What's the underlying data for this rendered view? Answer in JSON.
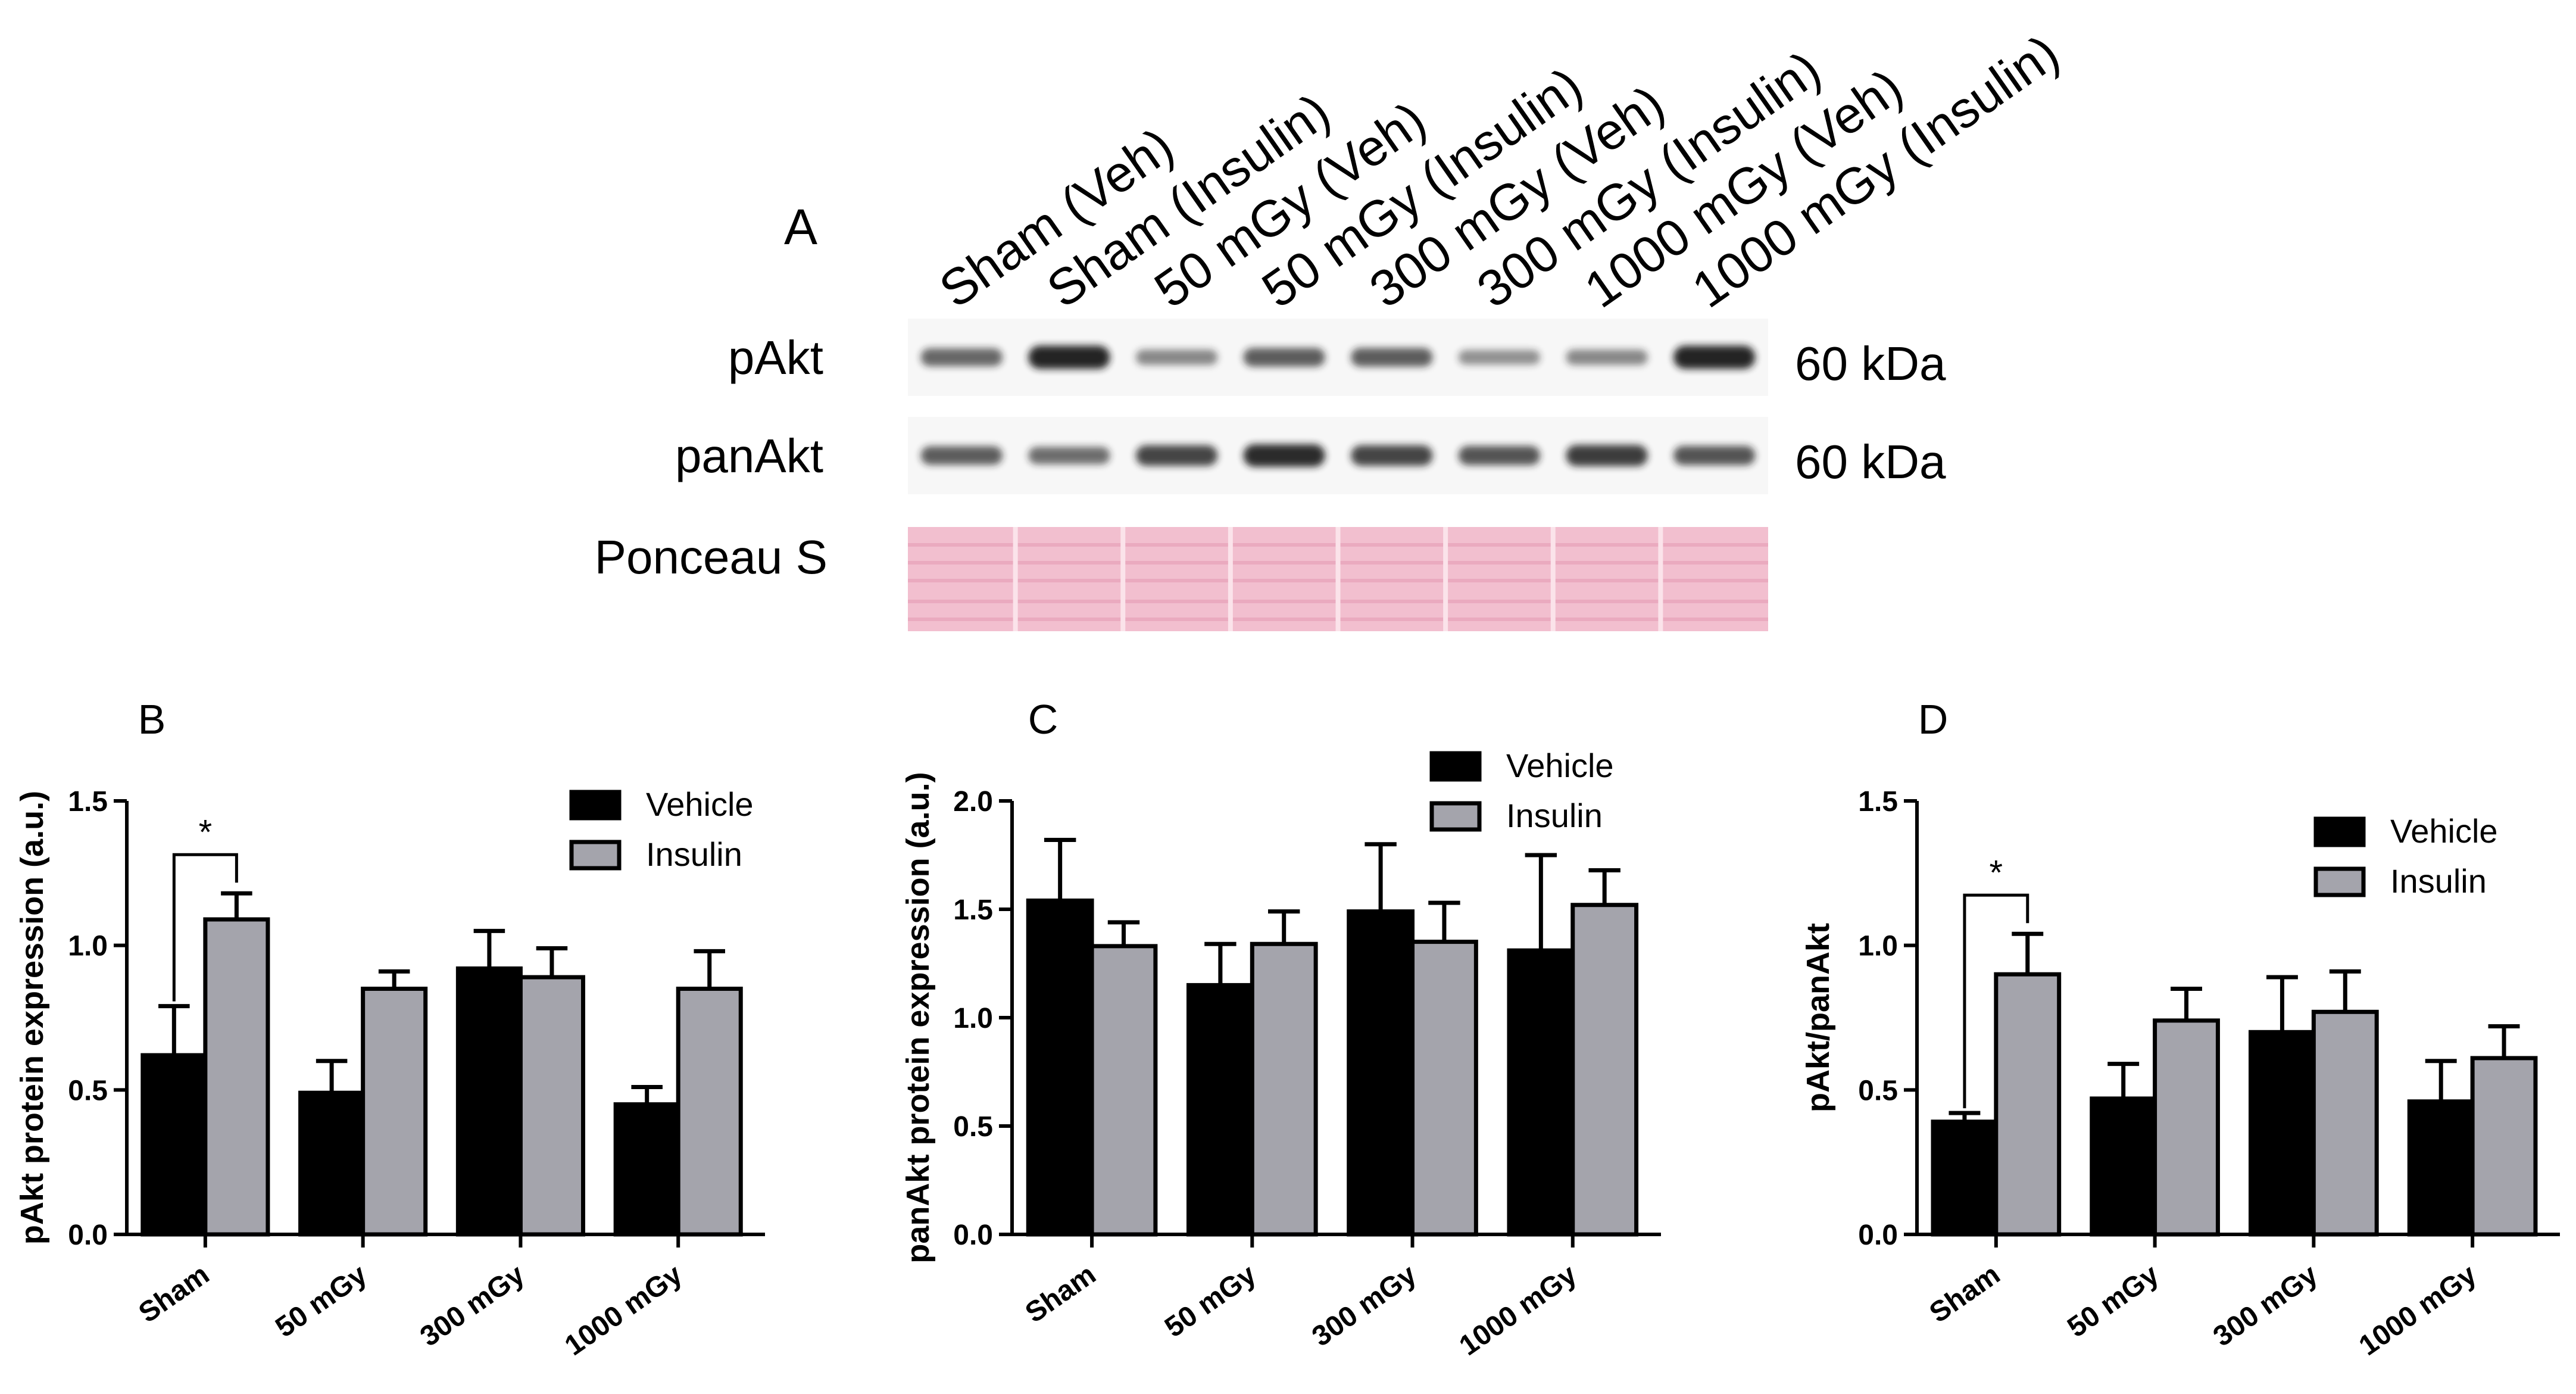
{
  "blot": {
    "panel_letter": "A",
    "lanes": [
      "Sham (Veh)",
      "Sham (Insulin)",
      "50 mGy (Veh)",
      "50 mGy (Insulin)",
      "300 mGy (Veh)",
      "300 mGy (Insulin)",
      "1000 mGy (Veh)",
      "1000 mGy (Insulin)"
    ],
    "rows": [
      {
        "label": "pAkt",
        "size": "60 kDa",
        "band_intensity": [
          0.55,
          0.95,
          0.35,
          0.6,
          0.6,
          0.3,
          0.35,
          0.95
        ]
      },
      {
        "label": "panAkt",
        "size": "60 kDa",
        "band_intensity": [
          0.6,
          0.5,
          0.75,
          0.9,
          0.75,
          0.65,
          0.8,
          0.65
        ]
      },
      {
        "label": "Ponceau S",
        "size": ""
      }
    ],
    "colors": {
      "band": "#1a1a1a",
      "ponceau": "#f2bfcf",
      "ponceau_line": "#e397b0"
    }
  },
  "colors": {
    "vehicle": "#000000",
    "insulin": "#a4a4ac"
  },
  "chart_data": [
    {
      "panel_letter": "B",
      "type": "bar",
      "categories": [
        "Sham",
        "50 mGy",
        "300 mGy",
        "1000 mGy"
      ],
      "series": [
        {
          "name": "Vehicle",
          "values": [
            0.62,
            0.49,
            0.92,
            0.45
          ],
          "errors": [
            0.17,
            0.11,
            0.13,
            0.06
          ]
        },
        {
          "name": "Insulin",
          "values": [
            1.09,
            0.85,
            0.89,
            0.85
          ],
          "errors": [
            0.09,
            0.06,
            0.1,
            0.13
          ]
        }
      ],
      "ylabel": "pAkt protein expression (a.u.)",
      "ylim": [
        0,
        1.5
      ],
      "yticks": [
        0.0,
        0.5,
        1.0,
        1.5
      ],
      "ytick_labels": [
        "0.0",
        "0.5",
        "1.0",
        "1.5"
      ],
      "legend_position": "top-right",
      "grid": false,
      "annotations": [
        {
          "text": "*",
          "between": [
            "Sham Vehicle",
            "Sham Insulin"
          ]
        }
      ]
    },
    {
      "panel_letter": "C",
      "type": "bar",
      "categories": [
        "Sham",
        "50 mGy",
        "300 mGy",
        "1000 mGy"
      ],
      "series": [
        {
          "name": "Vehicle",
          "values": [
            1.54,
            1.15,
            1.49,
            1.31
          ],
          "errors": [
            0.28,
            0.19,
            0.31,
            0.44
          ]
        },
        {
          "name": "Insulin",
          "values": [
            1.33,
            1.34,
            1.35,
            1.52
          ],
          "errors": [
            0.11,
            0.15,
            0.18,
            0.16
          ]
        }
      ],
      "ylabel": "panAkt protein expression (a.u.)",
      "ylim": [
        0,
        2.0
      ],
      "yticks": [
        0.0,
        0.5,
        1.0,
        1.5,
        2.0
      ],
      "ytick_labels": [
        "0.0",
        "0.5",
        "1.0",
        "1.5",
        "2.0"
      ],
      "legend_position": "top-right",
      "grid": false,
      "annotations": []
    },
    {
      "panel_letter": "D",
      "type": "bar",
      "categories": [
        "Sham",
        "50 mGy",
        "300 mGy",
        "1000 mGy"
      ],
      "series": [
        {
          "name": "Vehicle",
          "values": [
            0.39,
            0.47,
            0.7,
            0.46
          ],
          "errors": [
            0.03,
            0.12,
            0.19,
            0.14
          ]
        },
        {
          "name": "Insulin",
          "values": [
            0.9,
            0.74,
            0.77,
            0.61
          ],
          "errors": [
            0.14,
            0.11,
            0.14,
            0.11
          ]
        }
      ],
      "ylabel": "pAkt/panAkt",
      "ylim": [
        0,
        1.5
      ],
      "yticks": [
        0.0,
        0.5,
        1.0,
        1.5
      ],
      "ytick_labels": [
        "0.0",
        "0.5",
        "1.0",
        "1.5"
      ],
      "legend_position": "top-right",
      "grid": false,
      "annotations": [
        {
          "text": "*",
          "between": [
            "Sham Vehicle",
            "Sham Insulin"
          ]
        }
      ]
    }
  ]
}
